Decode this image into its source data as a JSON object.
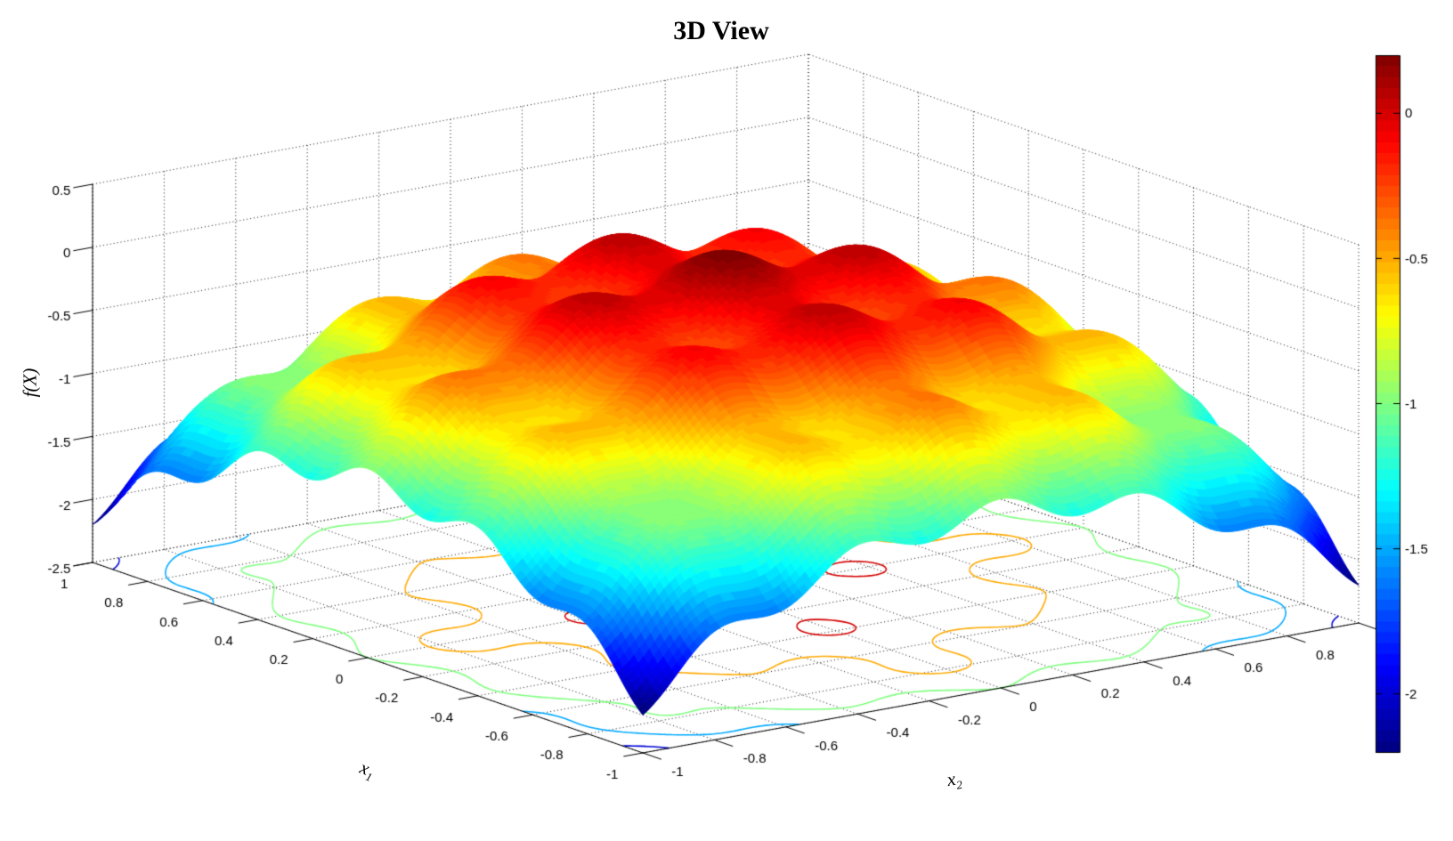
{
  "chart_data": {
    "type": "surface",
    "title": "3D View",
    "axes": {
      "z_label": "f(X)",
      "x1_label": {
        "base": "x",
        "sub": "1"
      },
      "x2_label": {
        "base": "x",
        "sub": "2"
      },
      "x1_range": [
        -1,
        1
      ],
      "x2_range": [
        -1,
        1
      ],
      "z_range": [
        -2.5,
        0.5
      ],
      "x1_ticks": {
        "labels": [
          "1",
          "0.8",
          "0.6",
          "0.4",
          "0.2",
          "0",
          "-0.2",
          "-0.4",
          "-0.6",
          "-0.8",
          "-1"
        ],
        "values": [
          1,
          0.8,
          0.6,
          0.4,
          0.2,
          0,
          -0.2,
          -0.4,
          -0.6,
          -0.8,
          -1
        ]
      },
      "x2_ticks": {
        "labels": [
          "-1",
          "-0.8",
          "-0.6",
          "-0.4",
          "-0.2",
          "0",
          "0.2",
          "0.4",
          "0.6",
          "0.8"
        ],
        "values": [
          -1,
          -0.8,
          -0.6,
          -0.4,
          -0.2,
          0,
          0.2,
          0.4,
          0.6,
          0.8
        ],
        "grid_values": [
          -1,
          -0.8,
          -0.6,
          -0.4,
          -0.2,
          0,
          0.2,
          0.4,
          0.6,
          0.8,
          1
        ]
      },
      "z_ticks": {
        "labels": [
          "0.5",
          "0",
          "-0.5",
          "-1",
          "-1.5",
          "-2",
          "-2.5"
        ],
        "values": [
          0.5,
          0,
          -0.5,
          -1,
          -1.5,
          -2,
          -2.5
        ]
      },
      "grid_style": "dotted",
      "grid_color": "#141414"
    },
    "surface": {
      "function": "f(x1,x2) = 0.1*cos(5*pi*x1) + 0.1*cos(5*pi*x2) - (x1^2 + x2^2)",
      "params": {
        "ripple_amplitude": 0.1,
        "ripple_cycles": 5,
        "bowl_coefficient": 1
      },
      "z_min": -2.2,
      "z_max": 0.2,
      "mesh_n": 130
    },
    "colormap": {
      "name": "jet",
      "quantize_levels": 64,
      "caxis": [
        -2.2,
        0.2
      ],
      "anchors": [
        "#00007f",
        "#0000ff",
        "#00ffff",
        "#7fff7f",
        "#ffff00",
        "#ff0000",
        "#7f0000"
      ]
    },
    "colorbar": {
      "position": "right",
      "tick_labels": [
        "0",
        "-0.5",
        "-1",
        "-1.5",
        "-2"
      ],
      "tick_values": [
        0,
        -0.5,
        -1,
        -1.5,
        -2
      ]
    },
    "contour_projection": {
      "plane": "floor",
      "levels": [
        0,
        -0.5,
        -1,
        -1.5,
        -2
      ]
    },
    "view": {
      "azimuth_deg": -37.5,
      "elevation_deg": 30,
      "projection": "orthographic"
    },
    "background": "#ffffff"
  }
}
